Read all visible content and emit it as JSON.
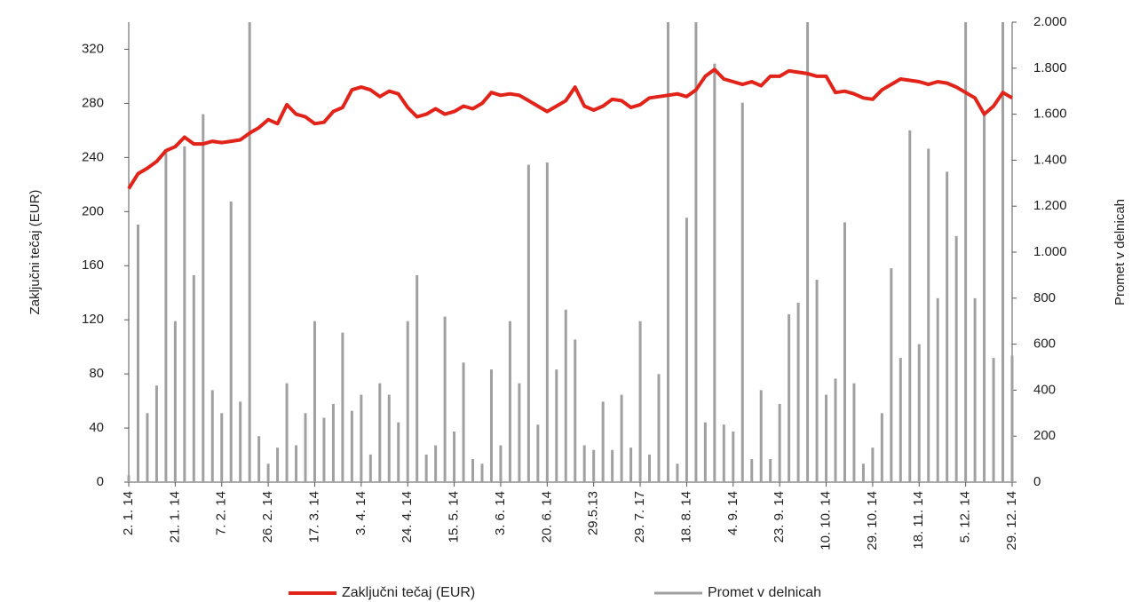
{
  "chart_data": {
    "type": "combo",
    "y_label": "Zaključni tečaj (EUR)",
    "y2_label": "Promet v delnicah",
    "categories": [
      "2. 1. 14",
      null,
      null,
      null,
      null,
      "21. 1. 14",
      null,
      null,
      null,
      null,
      "7. 2. 14",
      null,
      null,
      null,
      null,
      "26. 2. 14",
      null,
      null,
      null,
      null,
      "17. 3. 14",
      null,
      null,
      null,
      null,
      "3. 4. 14",
      null,
      null,
      null,
      null,
      "24. 4. 14",
      null,
      null,
      null,
      null,
      "15. 5. 14",
      null,
      null,
      null,
      null,
      "3. 6. 14",
      null,
      null,
      null,
      null,
      "20. 6. 14",
      null,
      null,
      null,
      null,
      "29.5.13",
      null,
      null,
      null,
      null,
      "29. 7. 17",
      null,
      null,
      null,
      null,
      "18. 8. 14",
      null,
      null,
      null,
      null,
      "4. 9. 14",
      null,
      null,
      null,
      null,
      "23. 9. 14",
      null,
      null,
      null,
      null,
      "10. 10. 14",
      null,
      null,
      null,
      null,
      "29. 10. 14",
      null,
      null,
      null,
      null,
      "18. 11. 14",
      null,
      null,
      null,
      null,
      "5. 12. 14",
      null,
      null,
      null,
      null,
      "29. 12. 14"
    ],
    "series": [
      {
        "name": "Promet v delnicah",
        "type": "bar",
        "axis": "y2",
        "color": "#a0a0a0",
        "values": [
          30,
          1120,
          300,
          420,
          1440,
          700,
          1460,
          900,
          1600,
          400,
          300,
          1220,
          350,
          2000,
          200,
          80,
          150,
          430,
          160,
          300,
          700,
          280,
          340,
          650,
          310,
          380,
          120,
          430,
          380,
          260,
          700,
          900,
          120,
          160,
          720,
          220,
          520,
          100,
          80,
          490,
          160,
          700,
          430,
          1380,
          250,
          1390,
          490,
          750,
          620,
          160,
          140,
          350,
          140,
          380,
          150,
          700,
          120,
          470,
          2000,
          80,
          1150,
          2000,
          260,
          1820,
          250,
          220,
          1650,
          100,
          400,
          100,
          340,
          730,
          780,
          2000,
          880,
          380,
          450,
          1130,
          430,
          80,
          150,
          300,
          930,
          540,
          1530,
          600,
          1450,
          800,
          1350,
          1070,
          2000,
          800,
          1600,
          540,
          2000,
          550
        ]
      },
      {
        "name": "Zaključni tečaj (EUR)",
        "type": "line",
        "color": "#e2231a",
        "values": [
          217,
          228,
          232,
          237,
          245,
          248,
          255,
          250,
          250,
          252,
          251,
          252,
          253,
          258,
          262,
          268,
          265,
          279,
          272,
          270,
          265,
          266,
          274,
          277,
          290,
          292,
          290,
          285,
          289,
          287,
          277,
          270,
          272,
          276,
          272,
          274,
          278,
          276,
          280,
          288,
          286,
          287,
          286,
          282,
          278,
          274,
          278,
          282,
          292,
          278,
          275,
          278,
          283,
          282,
          277,
          279,
          284,
          285,
          286,
          287,
          285,
          290,
          300,
          305,
          298,
          296,
          294,
          296,
          293,
          300,
          300,
          304,
          303,
          302,
          300,
          300,
          288,
          289,
          287,
          284,
          283,
          290,
          294,
          298,
          297,
          296,
          294,
          296,
          295,
          292,
          288,
          284,
          272,
          278,
          288,
          284
        ]
      }
    ],
    "ylim": [
      0,
      340
    ],
    "yticks": [
      0,
      40,
      80,
      120,
      160,
      200,
      240,
      280,
      320
    ],
    "y2lim": [
      0,
      2000
    ],
    "y2ticks": [
      0,
      200,
      400,
      600,
      800,
      {
        "value": 1000,
        "label": "1.000"
      },
      {
        "value": 1200,
        "label": "1.200"
      },
      {
        "value": 1400,
        "label": "1.400"
      },
      {
        "value": 1600,
        "label": "1.600"
      },
      {
        "value": 1800,
        "label": "1.800"
      },
      {
        "value": 2000,
        "label": "2.000"
      }
    ],
    "legend": "bottom"
  }
}
